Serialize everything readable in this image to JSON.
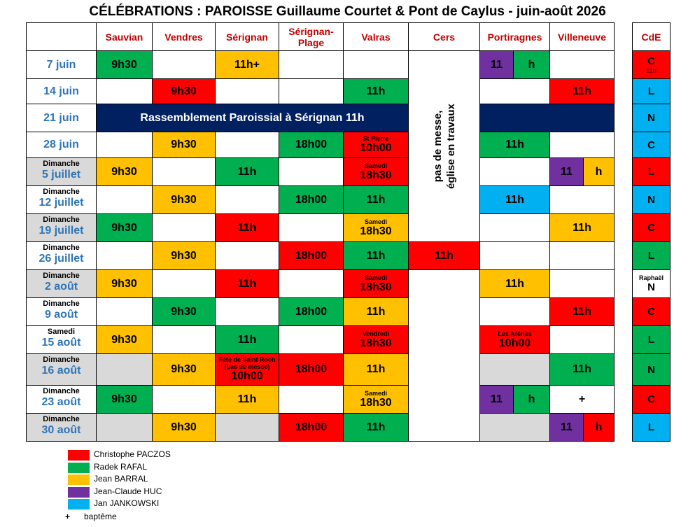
{
  "title": "CÉLÉBRATIONS : PAROISSE Guillaume Courtet & Pont de Caylus - juin-août 2026",
  "columns": [
    "Sauvian",
    "Vendres",
    "Sérignan",
    "Sérignan-Plage",
    "Valras",
    "Cers",
    "Portiragnes",
    "Villeneuve"
  ],
  "cde_header": "CdE",
  "cers_note": [
    "pas de messe,",
    "église en travaux"
  ],
  "rows": [
    {
      "date": "7 juin",
      "cells": [
        {
          "color": "#00b050",
          "text": "9h30"
        },
        {},
        {
          "color": "#ffc000",
          "text": "11h+"
        },
        {},
        {},
        null,
        {
          "parts": [
            {
              "color": "#7030a0",
              "text": "11"
            },
            {
              "color": "#00b050",
              "text": "h"
            }
          ]
        },
        {}
      ],
      "cde": {
        "color": "#ff0000",
        "text": "C",
        "sub": "11h"
      }
    },
    {
      "date": "14 juin",
      "cells": [
        {},
        {
          "color": "#ff0000",
          "text": "9h30"
        },
        {},
        {},
        {
          "color": "#00b050",
          "text": "11h"
        },
        null,
        {},
        {
          "color": "#ff0000",
          "text": "11h"
        }
      ],
      "cde": {
        "color": "#00b0f0",
        "text": "L"
      }
    },
    {
      "date": "21 juin",
      "banner": "Rassemblement Paroissial à Sérignan 11h",
      "cde": {
        "color": "#00b0f0",
        "text": "N"
      }
    },
    {
      "date": "28 juin",
      "cells": [
        {},
        {
          "color": "#ffc000",
          "text": "9h30"
        },
        {},
        {
          "color": "#00b050",
          "text": "18h00"
        },
        {
          "color": "#ff0000",
          "text": "10h00",
          "note": "St Pierre"
        },
        null,
        {
          "color": "#00b050",
          "text": "11h"
        },
        {}
      ],
      "cde": {
        "color": "#00b0f0",
        "text": "C"
      }
    },
    {
      "day": "Dimanche",
      "date": "5 juillet",
      "shade": "#d9d9d9",
      "cells": [
        {
          "color": "#ffc000",
          "text": "9h30"
        },
        {},
        {
          "color": "#00b050",
          "text": "11h"
        },
        {},
        {
          "color": "#ff0000",
          "text": "18h30",
          "note": "Samedi"
        },
        null,
        {},
        {
          "parts": [
            {
              "color": "#7030a0",
              "text": "11"
            },
            {
              "color": "#ffc000",
              "text": "h"
            }
          ]
        }
      ],
      "cde": {
        "color": "#ff0000",
        "text": "L"
      }
    },
    {
      "day": "Dimanche",
      "date": "12 juillet",
      "cells": [
        {},
        {
          "color": "#ffc000",
          "text": "9h30"
        },
        {},
        {
          "color": "#00b050",
          "text": "18h00"
        },
        {
          "color": "#00b050",
          "text": "11h"
        },
        null,
        {
          "color": "#00b0f0",
          "text": "11h"
        },
        {}
      ],
      "cde": {
        "color": "#00b0f0",
        "text": "N"
      }
    },
    {
      "day": "Dimanche",
      "date": "19 juillet",
      "shade": "#d9d9d9",
      "cells": [
        {
          "color": "#00b050",
          "text": "9h30"
        },
        {},
        {
          "color": "#ff0000",
          "text": "11h"
        },
        {},
        {
          "color": "#ffc000",
          "text": "18h30",
          "note": "Samedi"
        },
        null,
        {},
        {
          "color": "#ffc000",
          "text": "11h"
        }
      ],
      "cde": {
        "color": "#ff0000",
        "text": "C"
      }
    },
    {
      "day": "Dimanche",
      "date": "26 juillet",
      "cells": [
        {},
        {
          "color": "#ffc000",
          "text": "9h30"
        },
        {},
        {
          "color": "#ff0000",
          "text": "18h00"
        },
        {
          "color": "#00b050",
          "text": "11h"
        },
        {
          "color": "#ff0000",
          "text": "11h"
        },
        {},
        {}
      ],
      "cde": {
        "color": "#00b050",
        "text": "L"
      }
    },
    {
      "day": "Dimanche",
      "date": "2 août",
      "shade": "#d9d9d9",
      "cells": [
        {
          "color": "#ffc000",
          "text": "9h30"
        },
        {},
        {
          "color": "#ff0000",
          "text": "11h"
        },
        {},
        {
          "color": "#ff0000",
          "text": "18h30",
          "note": "Samedi"
        },
        null,
        {
          "color": "#ffc000",
          "text": "11h"
        },
        {}
      ],
      "cde": {
        "text": "N",
        "note": "Raphaël"
      }
    },
    {
      "day": "Dimanche",
      "date": "9 août",
      "cells": [
        {},
        {
          "color": "#00b050",
          "text": "9h30"
        },
        {},
        {
          "color": "#00b050",
          "text": "18h00"
        },
        {
          "color": "#ffc000",
          "text": "11h"
        },
        null,
        {},
        {
          "color": "#ff0000",
          "text": "11h"
        }
      ],
      "cde": {
        "color": "#ff0000",
        "text": "C"
      }
    },
    {
      "day": "Samedi",
      "date": "15 août",
      "cells": [
        {
          "color": "#ffc000",
          "text": "9h30"
        },
        {},
        {
          "color": "#00b050",
          "text": "11h"
        },
        {},
        {
          "color": "#ff0000",
          "text": "18h30",
          "note": "Vendredi"
        },
        null,
        {
          "color": "#ff0000",
          "text": "10h00",
          "note": "Les Arènes"
        },
        {}
      ],
      "cde": {
        "color": "#00b050",
        "text": "L"
      }
    },
    {
      "day": "Dimanche",
      "date": "16 août",
      "shade": "#d9d9d9",
      "cells": [
        {
          "color": "#d9d9d9"
        },
        {
          "color": "#ffc000",
          "text": "9h30"
        },
        {
          "color": "#ff0000",
          "text": "10h00",
          "note": "Fête de Saint Roch (pas de messe)"
        },
        {
          "color": "#ff0000",
          "text": "18h00"
        },
        {
          "color": "#ffc000",
          "text": "11h"
        },
        null,
        {
          "color": "#d9d9d9"
        },
        {
          "color": "#00b050",
          "text": "11h"
        }
      ],
      "cde": {
        "color": "#00b050",
        "text": "N"
      }
    },
    {
      "day": "Dimanche",
      "date": "23 août",
      "cells": [
        {
          "color": "#00b050",
          "text": "9h30"
        },
        {},
        {
          "color": "#ffc000",
          "text": "11h"
        },
        {},
        {
          "color": "#ffc000",
          "text": "18h30",
          "note": "Samedi"
        },
        null,
        {
          "parts": [
            {
              "color": "#7030a0",
              "text": "11"
            },
            {
              "color": "#00b050",
              "text": "h"
            }
          ]
        },
        {
          "text": "+"
        }
      ],
      "cde": {
        "color": "#ff0000",
        "text": "C"
      }
    },
    {
      "day": "Dimanche",
      "date": "30 août",
      "shade": "#d9d9d9",
      "cells": [
        {
          "color": "#d9d9d9"
        },
        {
          "color": "#ffc000",
          "text": "9h30"
        },
        {
          "color": "#d9d9d9"
        },
        {
          "color": "#ff0000",
          "text": "18h00"
        },
        {
          "color": "#00b050",
          "text": "11h"
        },
        null,
        {
          "color": "#d9d9d9"
        },
        {
          "parts": [
            {
              "color": "#7030a0",
              "text": "11"
            },
            {
              "color": "#ff0000",
              "text": "h"
            }
          ]
        }
      ],
      "cde": {
        "color": "#00b0f0",
        "text": "L"
      }
    }
  ],
  "legend": [
    {
      "color": "#ff0000",
      "label": "Christophe PACZOS"
    },
    {
      "color": "#00b050",
      "label": "Radek RAFAL"
    },
    {
      "color": "#ffc000",
      "label": "Jean BARRAL"
    },
    {
      "color": "#7030a0",
      "label": "Jean-Claude HUC"
    },
    {
      "color": "#00b0f0",
      "label": "Jan JANKOWSKI"
    }
  ],
  "baptism": {
    "symbol": "+",
    "label": "baptême"
  }
}
